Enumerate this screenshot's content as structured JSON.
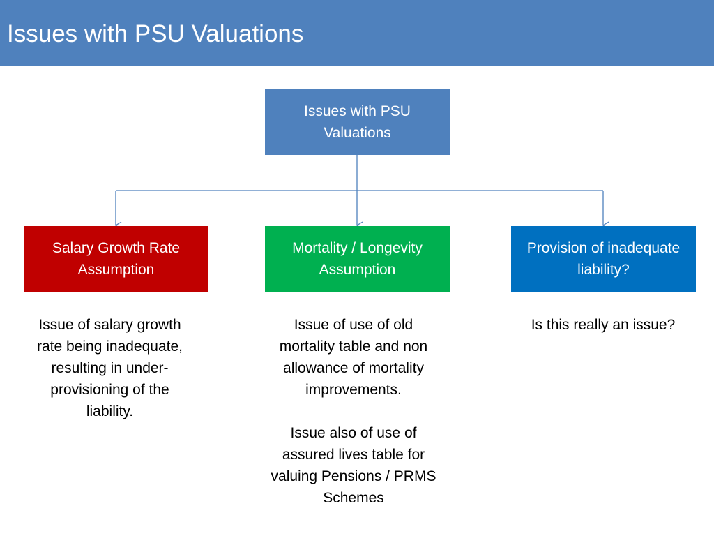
{
  "slide": {
    "title": "Issues with PSU Valuations"
  },
  "diagram": {
    "root": {
      "label": "Issues with PSU Valuations",
      "color": "#4f81bd"
    },
    "branches": [
      {
        "label": "Salary Growth Rate Assumption",
        "color": "#c00000",
        "description": [
          "Issue of salary growth rate being inadequate, resulting in under-provisioning of the liability."
        ]
      },
      {
        "label": "Mortality / Longevity Assumption",
        "color": "#00b050",
        "description": [
          "Issue of use of old mortality table and non allowance of mortality improvements.",
          "Issue also of use of assured lives table for valuing Pensions / PRMS Schemes"
        ]
      },
      {
        "label": "Provision of inadequate liability?",
        "color": "#0070c0",
        "description": [
          "Is this really an issue?"
        ]
      }
    ],
    "connector_color": "#4f81bd"
  }
}
